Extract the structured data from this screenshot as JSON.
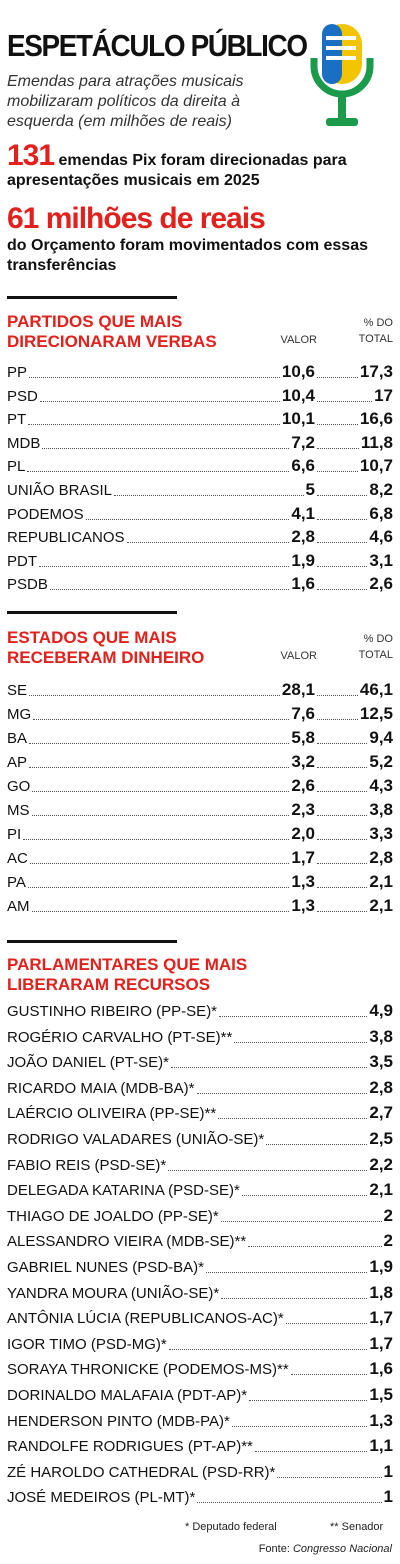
{
  "header": {
    "title": "ESPETÁCULO PÚBLICO",
    "subtitle": "Emendas para atrações musicais mobilizaram políticos da direita à esquerda (em milhões de reais)"
  },
  "highlights": [
    {
      "number": "131",
      "text": "emendas Pix foram direcionadas para apresentações musicais em 2025"
    },
    {
      "number": "61 milhões de reais",
      "text": "do Orçamento foram movimentados com essas transferências"
    }
  ],
  "partidos": {
    "title_highlight": "PARTIDOS",
    "title_rest": "QUE MAIS DIRECIONARAM VERBAS",
    "columns": [
      "VALOR",
      "% DO TOTAL"
    ],
    "rows": [
      [
        "PP",
        "10,6",
        "17,3"
      ],
      [
        "PSD",
        "10,4",
        "17"
      ],
      [
        "PT",
        "10,1",
        "16,6"
      ],
      [
        "MDB",
        "7,2",
        "11,8"
      ],
      [
        "PL",
        "6,6",
        "10,7"
      ],
      [
        "UNIÃO BRASIL",
        "5",
        "8,2"
      ],
      [
        "PODEMOS",
        "4,1",
        "6,8"
      ],
      [
        "REPUBLICANOS",
        "2,8",
        "4,6"
      ],
      [
        "PDT",
        "1,9",
        "3,1"
      ],
      [
        "PSDB",
        "1,6",
        "2,6"
      ]
    ]
  },
  "estados": {
    "title_highlight": "ESTADOS",
    "title_rest": "QUE MAIS RECEBERAM DINHEIRO",
    "columns": [
      "VALOR",
      "% DO TOTAL"
    ],
    "rows": [
      [
        "SE",
        "28,1",
        "46,1"
      ],
      [
        "MG",
        "7,6",
        "12,5"
      ],
      [
        "BA",
        "5,8",
        "9,4"
      ],
      [
        "AP",
        "3,2",
        "5,2"
      ],
      [
        "GO",
        "2,6",
        "4,3"
      ],
      [
        "MS",
        "2,3",
        "3,8"
      ],
      [
        "PI",
        "2,0",
        "3,3"
      ],
      [
        "AC",
        "1,7",
        "2,8"
      ],
      [
        "PA",
        "1,3",
        "2,1"
      ],
      [
        "AM",
        "1,3",
        "2,1"
      ]
    ]
  },
  "parlamentares": {
    "title_highlight": "PARLAMENTARES",
    "title_rest": "QUE MAIS LIBERARAM RECURSOS",
    "rows": [
      [
        "GUSTINHO RIBEIRO (PP-SE)*",
        "4,9"
      ],
      [
        "ROGÉRIO CARVALHO (PT-SE)**",
        "3,8"
      ],
      [
        "JOÃO DANIEL (PT-SE)*",
        "3,5"
      ],
      [
        "RICARDO MAIA (MDB-BA)*",
        "2,8"
      ],
      [
        "LAÉRCIO OLIVEIRA (PP-SE)**",
        "2,7"
      ],
      [
        "RODRIGO VALADARES (UNIÃO-SE)*",
        "2,5"
      ],
      [
        "FABIO REIS (PSD-SE)*",
        "2,2"
      ],
      [
        "DELEGADA KATARINA (PSD-SE)*",
        "2,1"
      ],
      [
        "THIAGO DE JOALDO (PP-SE)*",
        "2"
      ],
      [
        "ALESSANDRO VIEIRA (MDB-SE)**",
        "2"
      ],
      [
        "GABRIEL NUNES (PSD-BA)*",
        "1,9"
      ],
      [
        "YANDRA MOURA (UNIÃO-SE)*",
        "1,8"
      ],
      [
        "ANTÔNIA LÚCIA (REPUBLICANOS-AC)*",
        "1,7"
      ],
      [
        "IGOR TIMO (PSD-MG)*",
        "1,7"
      ],
      [
        "SORAYA THRONICKE (PODEMOS-MS)**",
        "1,6"
      ],
      [
        "DORINALDO MALAFAIA (PDT-AP)*",
        "1,5"
      ],
      [
        "HENDERSON PINTO (MDB-PA)*",
        "1,3"
      ],
      [
        "RANDOLFE RODRIGUES (PT-AP)**",
        "1,1"
      ],
      [
        "ZÉ HAROLDO CATHEDRAL (PSD-RR)*",
        "1"
      ],
      [
        "JOSÉ MEDEIROS (PL-MT)*",
        "1"
      ]
    ]
  },
  "footnotes": [
    "* Deputado federal",
    "** Senador"
  ],
  "source": {
    "label": "Fonte:",
    "name": "Congresso Nacional"
  }
}
